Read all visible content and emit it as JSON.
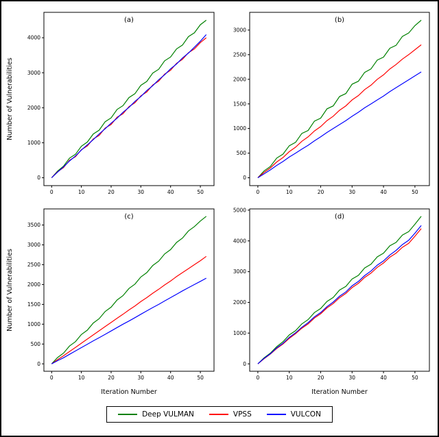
{
  "figure": {
    "background": "#ffffff",
    "border_color": "#000000"
  },
  "chart_data": {
    "type": "line",
    "xlabel": "Iteration Number",
    "ylabel": "Number of Vulnerabilities",
    "xlim": [
      -2.6,
      54.6
    ],
    "xticks": [
      0,
      10,
      20,
      30,
      40,
      50
    ],
    "grid": false,
    "legend_position": "bottom-center",
    "legend": {
      "items": [
        {
          "label": "Deep VULMAN",
          "color": "#008000"
        },
        {
          "label": "VPSS",
          "color": "#ff0000"
        },
        {
          "label": "VULCON",
          "color": "#0000ff"
        }
      ]
    },
    "x": [
      0,
      2,
      4,
      6,
      8,
      10,
      12,
      14,
      16,
      18,
      20,
      22,
      24,
      26,
      28,
      30,
      32,
      34,
      36,
      38,
      40,
      42,
      44,
      46,
      48,
      50,
      52
    ],
    "panels": [
      {
        "label": "(a)",
        "show_ylabel": true,
        "show_xlabel": false,
        "ylim": [
          -225,
          4725
        ],
        "yticks": [
          0,
          1000,
          2000,
          3000,
          4000
        ],
        "series": [
          {
            "name": "Deep VULMAN",
            "color": "#008000",
            "values": [
              0,
              190,
              330,
              560,
              670,
              900,
              1020,
              1250,
              1360,
              1600,
              1710,
              1950,
              2060,
              2290,
              2400,
              2640,
              2750,
              2990,
              3100,
              3340,
              3450,
              3680,
              3790,
              4030,
              4140,
              4370,
              4500
            ]
          },
          {
            "name": "VPSS",
            "color": "#ff0000",
            "values": [
              0,
              170,
              290,
              500,
              600,
              800,
              910,
              1110,
              1210,
              1420,
              1520,
              1730,
              1830,
              2030,
              2140,
              2340,
              2450,
              2650,
              2760,
              2960,
              3070,
              3270,
              3380,
              3570,
              3680,
              3860,
              4000
            ]
          },
          {
            "name": "VULCON",
            "color": "#0000ff",
            "values": [
              0,
              160,
              310,
              480,
              620,
              790,
              940,
              1090,
              1250,
              1400,
              1560,
              1700,
              1870,
              2010,
              2180,
              2320,
              2490,
              2630,
              2800,
              2940,
              3110,
              3250,
              3420,
              3560,
              3730,
              3900,
              4090
            ]
          }
        ]
      },
      {
        "label": "(b)",
        "show_ylabel": false,
        "show_xlabel": false,
        "ylim": [
          -160,
          3360
        ],
        "yticks": [
          0,
          500,
          1000,
          1500,
          2000,
          2500,
          3000
        ],
        "series": [
          {
            "name": "Deep VULMAN",
            "color": "#008000",
            "values": [
              0,
              140,
              230,
              400,
              480,
              650,
              720,
              900,
              960,
              1150,
              1210,
              1400,
              1460,
              1650,
              1710,
              1900,
              1960,
              2140,
              2210,
              2390,
              2450,
              2630,
              2690,
              2870,
              2940,
              3090,
              3200
            ]
          },
          {
            "name": "VPSS",
            "color": "#ff0000",
            "values": [
              0,
              110,
              200,
              320,
              410,
              530,
              620,
              740,
              830,
              950,
              1040,
              1160,
              1250,
              1370,
              1460,
              1580,
              1670,
              1790,
              1880,
              2000,
              2090,
              2210,
              2300,
              2410,
              2500,
              2600,
              2700
            ]
          },
          {
            "name": "VULCON",
            "color": "#0000ff",
            "values": [
              0,
              80,
              160,
              250,
              330,
              420,
              500,
              580,
              660,
              750,
              830,
              920,
              1000,
              1080,
              1160,
              1250,
              1330,
              1420,
              1500,
              1580,
              1660,
              1750,
              1830,
              1910,
              1990,
              2070,
              2150
            ]
          }
        ]
      },
      {
        "label": "(c)",
        "show_ylabel": true,
        "show_xlabel": true,
        "ylim": [
          -186,
          3906
        ],
        "yticks": [
          0,
          500,
          1000,
          1500,
          2000,
          2500,
          3000,
          3500
        ],
        "series": [
          {
            "name": "Deep VULMAN",
            "color": "#008000",
            "values": [
              0,
              160,
              270,
              450,
              560,
              740,
              850,
              1030,
              1140,
              1320,
              1430,
              1610,
              1720,
              1900,
              2010,
              2190,
              2300,
              2480,
              2590,
              2770,
              2880,
              3060,
              3170,
              3350,
              3460,
              3600,
              3720
            ]
          },
          {
            "name": "VPSS",
            "color": "#ff0000",
            "values": [
              0,
              105,
              205,
              310,
              415,
              520,
              625,
              730,
              835,
              940,
              1045,
              1150,
              1250,
              1360,
              1460,
              1570,
              1670,
              1780,
              1880,
              1990,
              2090,
              2200,
              2300,
              2400,
              2500,
              2600,
              2710
            ]
          },
          {
            "name": "VULCON",
            "color": "#0000ff",
            "values": [
              0,
              80,
              155,
              240,
              325,
              410,
              495,
              580,
              660,
              745,
              830,
              915,
              1000,
              1080,
              1165,
              1250,
              1335,
              1420,
              1500,
              1585,
              1670,
              1755,
              1840,
              1920,
              2000,
              2080,
              2160
            ]
          }
        ]
      },
      {
        "label": "(d)",
        "show_ylabel": false,
        "show_xlabel": true,
        "ylim": [
          -240,
          5040
        ],
        "yticks": [
          0,
          1000,
          2000,
          3000,
          4000,
          5000
        ],
        "series": [
          {
            "name": "Deep VULMAN",
            "color": "#008000",
            "values": [
              0,
              200,
              350,
              560,
              720,
              940,
              1080,
              1300,
              1440,
              1670,
              1800,
              2030,
              2160,
              2400,
              2520,
              2760,
              2880,
              3120,
              3240,
              3480,
              3600,
              3840,
              3950,
              4190,
              4300,
              4540,
              4800
            ]
          },
          {
            "name": "VPSS",
            "color": "#ff0000",
            "values": [
              0,
              170,
              320,
              500,
              650,
              830,
              980,
              1160,
              1300,
              1490,
              1630,
              1820,
              1960,
              2150,
              2290,
              2480,
              2620,
              2810,
              2950,
              3140,
              3280,
              3470,
              3600,
              3790,
              3920,
              4150,
              4400
            ]
          },
          {
            "name": "VULCON",
            "color": "#0000ff",
            "values": [
              0,
              180,
              330,
              520,
              670,
              860,
              1010,
              1190,
              1340,
              1530,
              1670,
              1860,
              2010,
              2200,
              2340,
              2540,
              2680,
              2870,
              3020,
              3210,
              3350,
              3540,
              3690,
              3880,
              4020,
              4250,
              4500
            ]
          }
        ]
      }
    ]
  }
}
